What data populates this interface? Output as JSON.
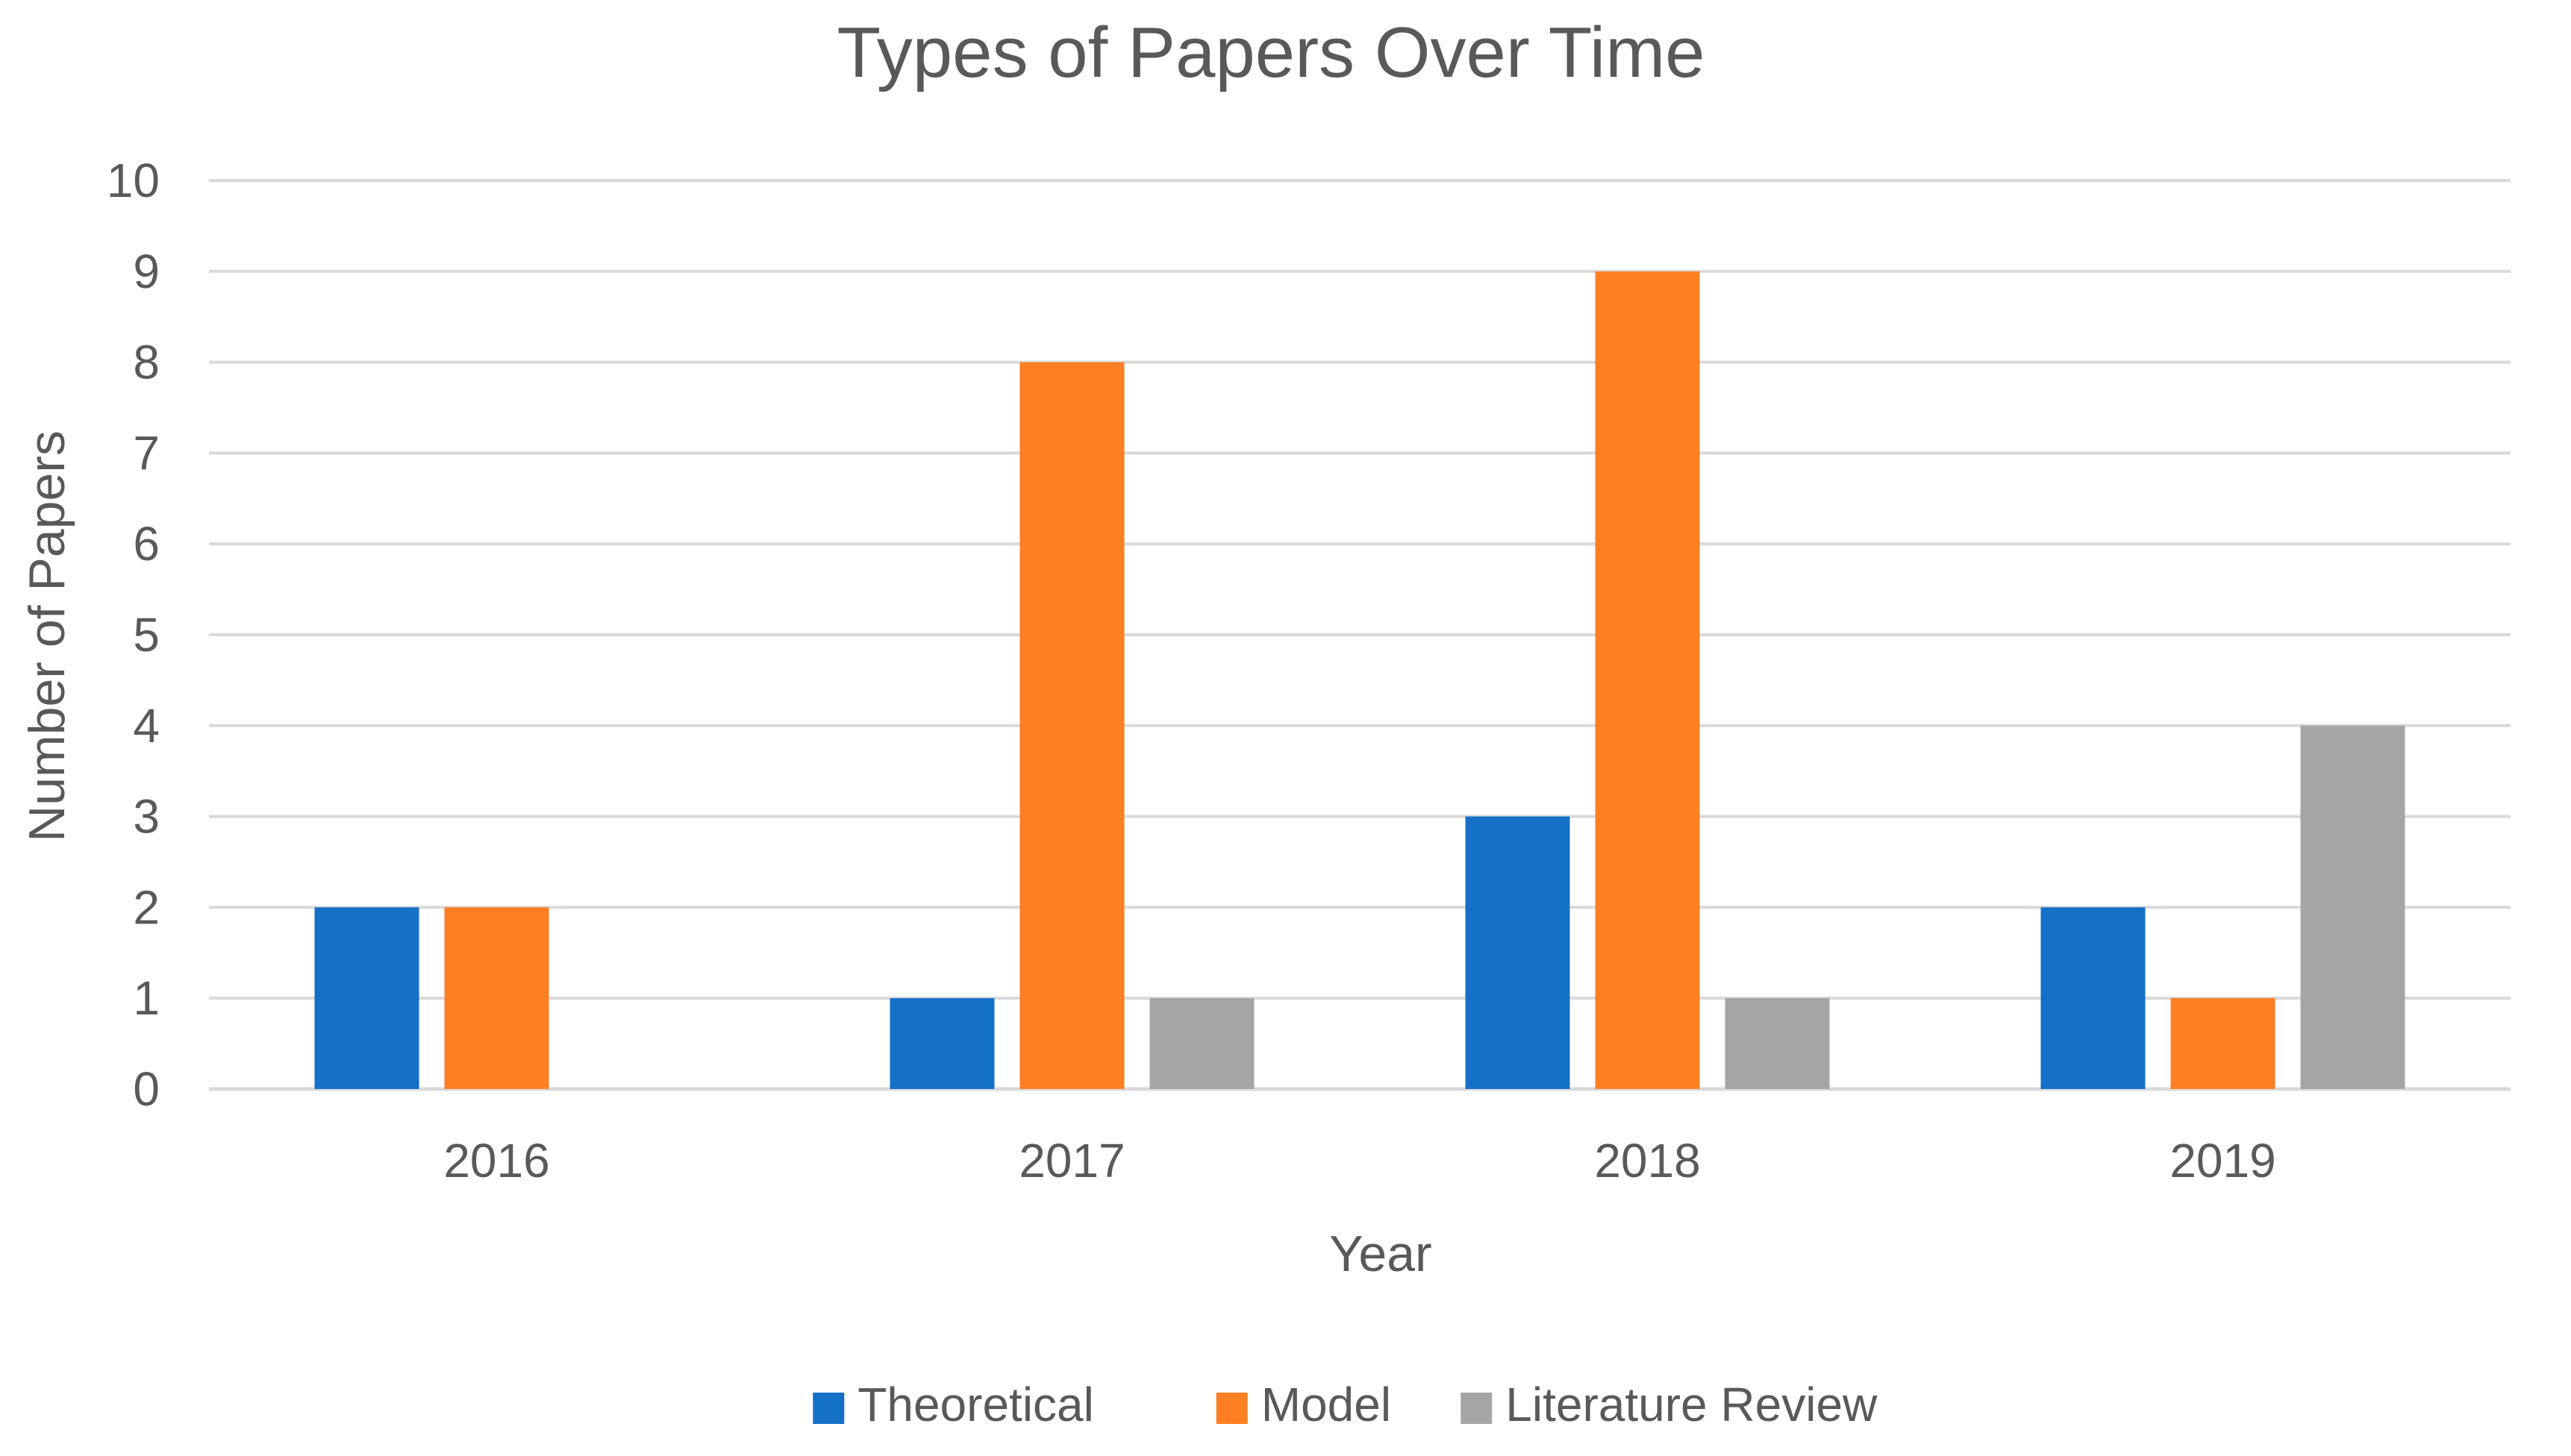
{
  "chart_data": {
    "type": "bar",
    "title": "Types of Papers Over Time",
    "xlabel": "Year",
    "ylabel": "Number of Papers",
    "categories": [
      "2016",
      "2017",
      "2018",
      "2019"
    ],
    "series": [
      {
        "name": "Theoretical",
        "values": [
          2,
          1,
          3,
          2
        ],
        "color": "#1570C8"
      },
      {
        "name": "Model",
        "values": [
          2,
          8,
          9,
          1
        ],
        "color": "#FD7F23"
      },
      {
        "name": "Literature Review",
        "values": [
          0,
          1,
          1,
          4
        ],
        "color": "#A5A5A5"
      }
    ],
    "ylim": [
      0,
      10
    ],
    "yticks": [
      "0",
      "1",
      "2",
      "3",
      "4",
      "5",
      "6",
      "7",
      "8",
      "9",
      "10"
    ],
    "grid": true,
    "legend_position": "bottom"
  }
}
